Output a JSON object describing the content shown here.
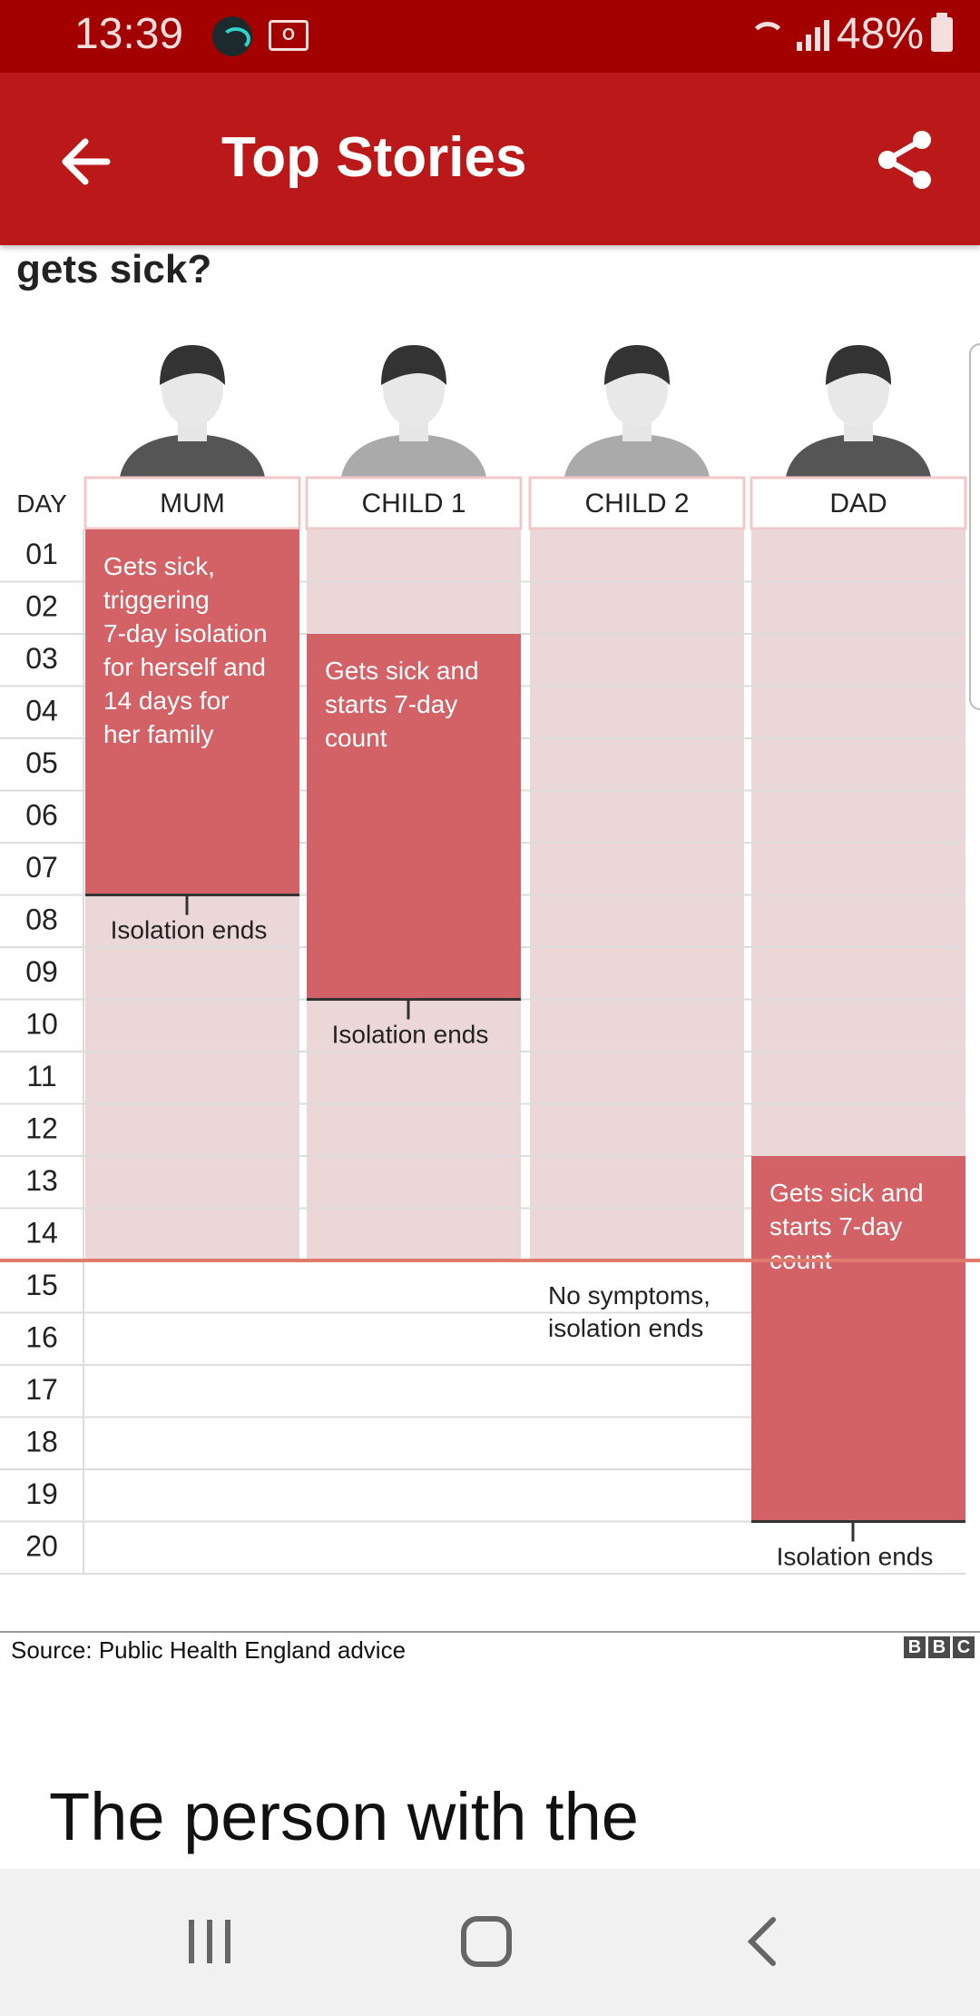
{
  "status_bar": {
    "time": "13:39",
    "battery": "48%"
  },
  "app_bar": {
    "title": "Top Stories",
    "back_icon": "arrow-left-icon",
    "share_icon": "share-icon"
  },
  "article": {
    "heading_fragment": "gets sick?",
    "body_start": "The person with the"
  },
  "chart_data": {
    "type": "table",
    "day_label": "DAY",
    "days": [
      "01",
      "02",
      "03",
      "04",
      "05",
      "06",
      "07",
      "08",
      "09",
      "10",
      "11",
      "12",
      "13",
      "14",
      "15",
      "16",
      "17",
      "18",
      "19",
      "20"
    ],
    "columns": [
      "MUM",
      "CHILD 1",
      "CHILD 2",
      "DAD"
    ],
    "bars": [
      {
        "person": "MUM",
        "isolation": [
          1,
          14
        ],
        "sick": [
          1,
          7
        ],
        "note": "Gets sick, triggering 7-day isolation for herself and 14 days for her family",
        "end_label": "Isolation ends"
      },
      {
        "person": "CHILD 1",
        "isolation": [
          1,
          14
        ],
        "sick": [
          3,
          9
        ],
        "note": "Gets sick and starts 7-day count",
        "end_label": "Isolation ends"
      },
      {
        "person": "CHILD 2",
        "isolation": [
          1,
          14
        ],
        "sick": null,
        "note": "",
        "end_label": "No symptoms, isolation ends"
      },
      {
        "person": "DAD",
        "isolation": [
          1,
          14
        ],
        "sick": [
          13,
          19
        ],
        "note": "Gets sick and starts 7-day count",
        "end_label": "Isolation ends"
      }
    ],
    "colors": {
      "sick": "#d36266",
      "isolation": "#ecd7d8",
      "header_border": "#f0c8c8",
      "day14_line": "#e07a6c"
    },
    "source": "Source: Public Health England advice",
    "logo": "BBC"
  },
  "nav_bar": {
    "recent_icon": "recent-apps-icon",
    "home_icon": "home-icon",
    "back_icon": "back-chevron-icon"
  }
}
